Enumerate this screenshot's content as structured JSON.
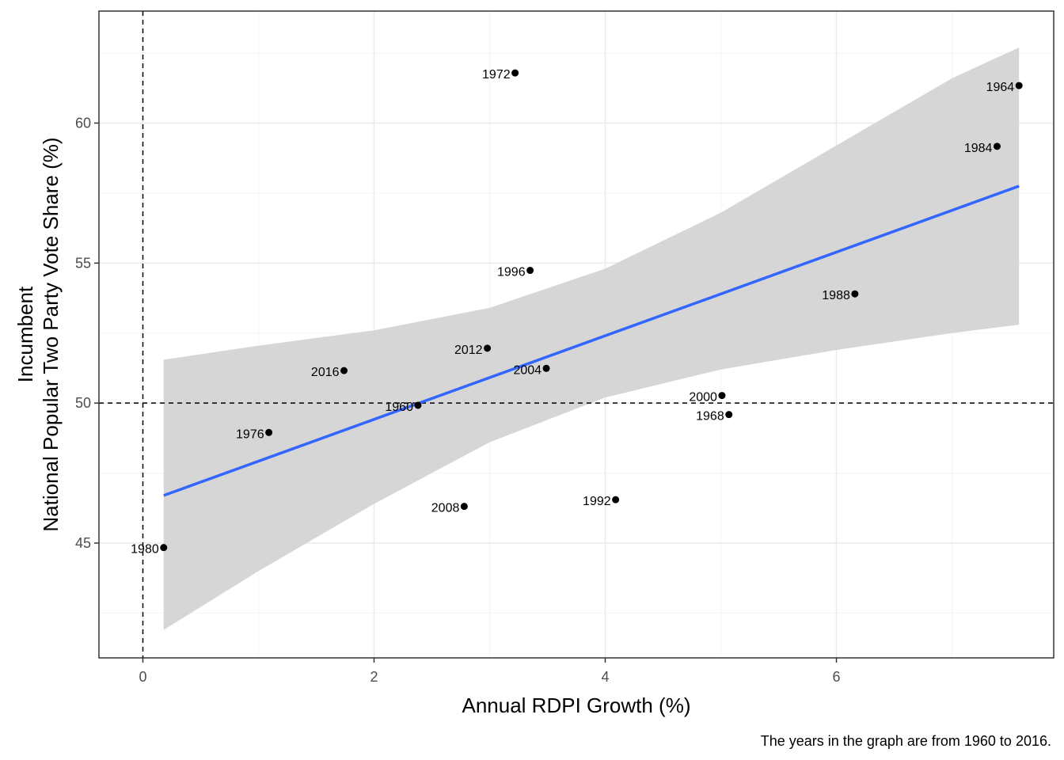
{
  "chart_data": {
    "type": "scatter",
    "title": "",
    "xlabel": "Annual RDPI Growth (%)",
    "ylabel_line1": "Incumbent",
    "ylabel_line2": "National Popular Two Party Vote Share (%)",
    "caption": "The years in the graph are from 1960 to 2016.",
    "xlim": [
      -0.38,
      7.88
    ],
    "ylim": [
      40.9,
      64.0
    ],
    "x_ticks": [
      0,
      2,
      4,
      6
    ],
    "y_ticks": [
      45,
      50,
      55,
      60
    ],
    "x_tick_labels": [
      "0",
      "2",
      "4",
      "6"
    ],
    "y_tick_labels": [
      "45",
      "50",
      "55",
      "60"
    ],
    "grid": true,
    "reference_lines": {
      "x": 0,
      "y": 50
    },
    "points": [
      {
        "label": "1960",
        "x": 2.38,
        "y": 49.92
      },
      {
        "label": "1964",
        "x": 7.58,
        "y": 61.34
      },
      {
        "label": "1968",
        "x": 5.07,
        "y": 49.59
      },
      {
        "label": "1972",
        "x": 3.22,
        "y": 61.79
      },
      {
        "label": "1976",
        "x": 1.09,
        "y": 48.95
      },
      {
        "label": "1980",
        "x": 0.18,
        "y": 44.84
      },
      {
        "label": "1984",
        "x": 7.39,
        "y": 59.17
      },
      {
        "label": "1988",
        "x": 6.16,
        "y": 53.9
      },
      {
        "label": "1992",
        "x": 4.09,
        "y": 46.55
      },
      {
        "label": "1996",
        "x": 3.35,
        "y": 54.74
      },
      {
        "label": "2000",
        "x": 5.01,
        "y": 50.27
      },
      {
        "label": "2004",
        "x": 3.49,
        "y": 51.24
      },
      {
        "label": "2008",
        "x": 2.78,
        "y": 46.31
      },
      {
        "label": "2012",
        "x": 2.98,
        "y": 51.96
      },
      {
        "label": "2016",
        "x": 1.74,
        "y": 51.16
      }
    ],
    "fit": {
      "type": "linear",
      "x": [
        0.18,
        7.58
      ],
      "y": [
        46.7,
        57.75
      ],
      "ci_lower": [
        {
          "x": 0.18,
          "y": 41.9
        },
        {
          "x": 1.0,
          "y": 44.0
        },
        {
          "x": 2.0,
          "y": 46.4
        },
        {
          "x": 3.0,
          "y": 48.6
        },
        {
          "x": 4.0,
          "y": 50.2
        },
        {
          "x": 5.0,
          "y": 51.2
        },
        {
          "x": 6.0,
          "y": 51.9
        },
        {
          "x": 7.0,
          "y": 52.5
        },
        {
          "x": 7.58,
          "y": 52.8
        }
      ],
      "ci_upper": [
        {
          "x": 0.18,
          "y": 51.55
        },
        {
          "x": 1.0,
          "y": 52.05
        },
        {
          "x": 2.0,
          "y": 52.6
        },
        {
          "x": 3.0,
          "y": 53.4
        },
        {
          "x": 4.0,
          "y": 54.8
        },
        {
          "x": 5.0,
          "y": 56.8
        },
        {
          "x": 6.0,
          "y": 59.2
        },
        {
          "x": 7.0,
          "y": 61.6
        },
        {
          "x": 7.58,
          "y": 62.7
        }
      ]
    },
    "colors": {
      "fit_line": "#3366FF",
      "ci_band": "#D4D4D4",
      "points": "#000000",
      "grid_major": "#EBEBEB",
      "grid_minor": "#F5F5F5",
      "panel_border": "#333333"
    }
  }
}
